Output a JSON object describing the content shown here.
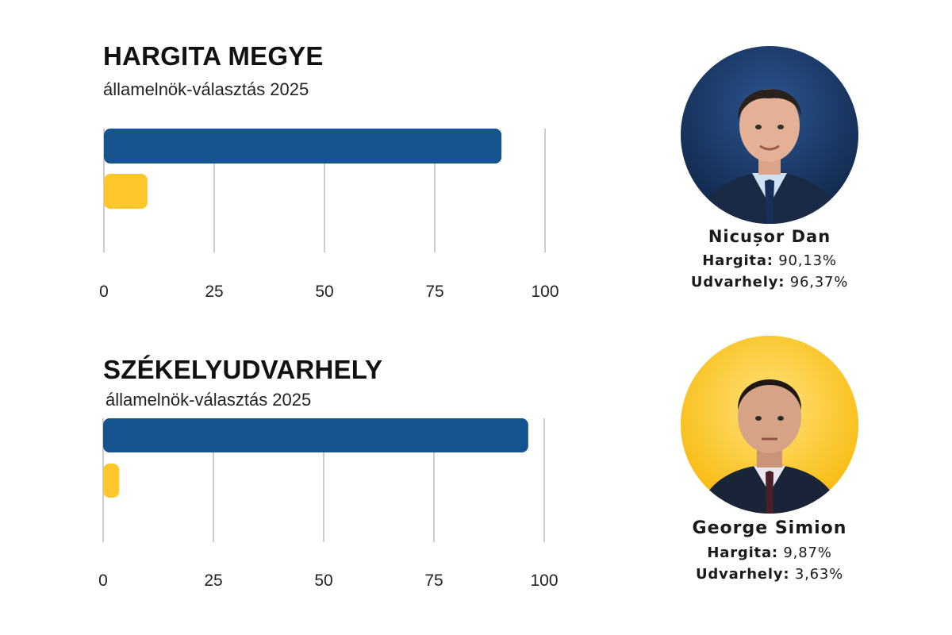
{
  "colors": {
    "candidate_1": "#16548f",
    "candidate_2": "#ffc72c",
    "grid": "#cccccc"
  },
  "chart_data": [
    {
      "type": "bar",
      "orientation": "horizontal",
      "title": "HARGITA MEGYE",
      "subtitle": "államelnök-választás 2025",
      "series": [
        {
          "values": [
            90.13
          ],
          "color": "#16548f"
        },
        {
          "values": [
            9.87
          ],
          "color": "#ffc72c"
        }
      ],
      "xlim": [
        0,
        100
      ],
      "xticks": [
        0,
        25,
        50,
        75,
        100
      ],
      "grid": true
    },
    {
      "type": "bar",
      "orientation": "horizontal",
      "title": "SZÉKELYUDVARHELY",
      "subtitle": "államelnök-választás 2025",
      "series": [
        {
          "values": [
            96.37
          ],
          "color": "#16548f"
        },
        {
          "values": [
            3.63
          ],
          "color": "#ffc72c"
        }
      ],
      "xlim": [
        0,
        100
      ],
      "xticks": [
        0,
        25,
        50,
        75,
        100
      ],
      "grid": true
    }
  ],
  "candidates": [
    {
      "name": "Nicușor Dan",
      "photo_background": "#1b3a66",
      "hargita_label": "Hargita:",
      "hargita_value": "90,13%",
      "udvarhely_label": "Udvarhely:",
      "udvarhely_value": "96,37%"
    },
    {
      "name": "George Simion",
      "photo_background": "#ffc72c",
      "hargita_label": "Hargita:",
      "hargita_value": "9,87%",
      "udvarhely_label": "Udvarhely:",
      "udvarhely_value": "3,63%"
    }
  ]
}
